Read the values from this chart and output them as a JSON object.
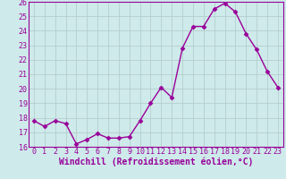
{
  "x": [
    0,
    1,
    2,
    3,
    4,
    5,
    6,
    7,
    8,
    9,
    10,
    11,
    12,
    13,
    14,
    15,
    16,
    17,
    18,
    19,
    20,
    21,
    22,
    23
  ],
  "y": [
    17.8,
    17.4,
    17.8,
    17.6,
    16.2,
    16.5,
    16.9,
    16.6,
    16.6,
    16.7,
    17.8,
    19.0,
    20.1,
    19.4,
    22.8,
    24.3,
    24.3,
    25.5,
    25.9,
    25.3,
    23.8,
    22.7,
    21.2,
    20.1
  ],
  "line_color": "#990099",
  "marker": "D",
  "markersize": 2.5,
  "linewidth": 1.0,
  "xlabel": "Windchill (Refroidissement éolien,°C)",
  "ylabel": "",
  "title": "",
  "xlim": [
    -0.5,
    23.5
  ],
  "ylim": [
    16,
    26
  ],
  "yticks": [
    16,
    17,
    18,
    19,
    20,
    21,
    22,
    23,
    24,
    25,
    26
  ],
  "xticks": [
    0,
    1,
    2,
    3,
    4,
    5,
    6,
    7,
    8,
    9,
    10,
    11,
    12,
    13,
    14,
    15,
    16,
    17,
    18,
    19,
    20,
    21,
    22,
    23
  ],
  "bg_color": "#ceeaea",
  "grid_color": "#b0c8c8",
  "tick_color": "#990099",
  "xlabel_color": "#990099",
  "xlabel_fontsize": 7.0,
  "tick_fontsize": 6.0,
  "fig_width": 3.2,
  "fig_height": 2.0,
  "dpi": 100
}
